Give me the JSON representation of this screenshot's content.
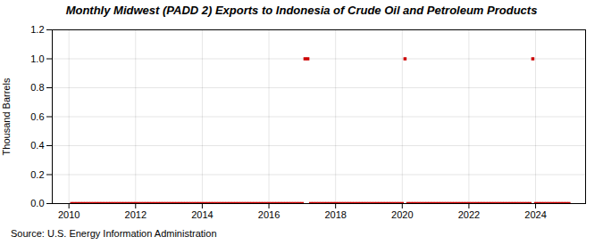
{
  "chart_data": {
    "type": "scatter",
    "title": "Monthly Midwest (PADD 2) Exports to Indonesia of Crude Oil and Petroleum Products",
    "ylabel": "Thousand Barrels",
    "source": "Source: U.S. Energy Information Administration",
    "color": "#cc0000",
    "marker": "square",
    "grid": true,
    "xlim": [
      2009.5,
      2025.5
    ],
    "xticks": [
      2010,
      2012,
      2014,
      2016,
      2018,
      2020,
      2022,
      2024
    ],
    "ylim": [
      0.0,
      1.2
    ],
    "yticks": [
      {
        "value": 0.0,
        "label": "0.0"
      },
      0.2,
      0.4,
      0.6,
      0.8,
      {
        "value": 1.0,
        "label": "1.0"
      },
      1.2
    ],
    "x": [
      2010.0833,
      2010.1667,
      2010.25,
      2010.3333,
      2010.4167,
      2010.5,
      2010.5833,
      2010.6667,
      2010.75,
      2010.8333,
      2010.9167,
      2011.0,
      2011.0833,
      2011.1667,
      2011.25,
      2011.3333,
      2011.4167,
      2011.5,
      2011.5833,
      2011.6667,
      2011.75,
      2011.8333,
      2011.9167,
      2012.0,
      2012.0833,
      2012.1667,
      2012.25,
      2012.3333,
      2012.4167,
      2012.5,
      2012.5833,
      2012.6667,
      2012.75,
      2012.8333,
      2012.9167,
      2013.0,
      2013.0833,
      2013.1667,
      2013.25,
      2013.3333,
      2013.4167,
      2013.5,
      2013.5833,
      2013.6667,
      2013.75,
      2013.8333,
      2013.9167,
      2014.0,
      2014.0833,
      2014.1667,
      2014.25,
      2014.3333,
      2014.4167,
      2014.5,
      2014.5833,
      2014.6667,
      2014.75,
      2014.8333,
      2014.9167,
      2015.0,
      2015.0833,
      2015.1667,
      2015.25,
      2015.3333,
      2015.4167,
      2015.5,
      2015.5833,
      2015.6667,
      2015.75,
      2015.8333,
      2015.9167,
      2016.0,
      2016.0833,
      2016.1667,
      2016.25,
      2016.3333,
      2016.4167,
      2016.5,
      2016.5833,
      2016.6667,
      2016.75,
      2016.8333,
      2016.9167,
      2017.0,
      2017.0833,
      2017.1667,
      2017.25,
      2017.3333,
      2017.4167,
      2017.5,
      2017.5833,
      2017.6667,
      2017.75,
      2017.8333,
      2017.9167,
      2018.0,
      2018.0833,
      2018.1667,
      2018.25,
      2018.3333,
      2018.4167,
      2018.5,
      2018.5833,
      2018.6667,
      2018.75,
      2018.8333,
      2018.9167,
      2019.0,
      2019.0833,
      2019.1667,
      2019.25,
      2019.3333,
      2019.4167,
      2019.5,
      2019.5833,
      2019.6667,
      2019.75,
      2019.8333,
      2019.9167,
      2020.0,
      2020.0833,
      2020.1667,
      2020.25,
      2020.3333,
      2020.4167,
      2020.5,
      2020.5833,
      2020.6667,
      2020.75,
      2020.8333,
      2020.9167,
      2021.0,
      2021.0833,
      2021.1667,
      2021.25,
      2021.3333,
      2021.4167,
      2021.5,
      2021.5833,
      2021.6667,
      2021.75,
      2021.8333,
      2021.9167,
      2022.0,
      2022.0833,
      2022.1667,
      2022.25,
      2022.3333,
      2022.4167,
      2022.5,
      2022.5833,
      2022.6667,
      2022.75,
      2022.8333,
      2022.9167,
      2023.0,
      2023.0833,
      2023.1667,
      2023.25,
      2023.3333,
      2023.4167,
      2023.5,
      2023.5833,
      2023.6667,
      2023.75,
      2023.8333,
      2023.9167,
      2024.0,
      2024.0833,
      2024.1667,
      2024.25,
      2024.3333,
      2024.4167,
      2024.5,
      2024.5833,
      2024.6667,
      2024.75,
      2024.8333,
      2024.9167,
      2025.0
    ],
    "values": [
      0,
      0,
      0,
      0,
      0,
      0,
      0,
      0,
      0,
      0,
      0,
      0,
      0,
      0,
      0,
      0,
      0,
      0,
      0,
      0,
      0,
      0,
      0,
      0,
      0,
      0,
      0,
      0,
      0,
      0,
      0,
      0,
      0,
      0,
      0,
      0,
      0,
      0,
      0,
      0,
      0,
      0,
      0,
      0,
      0,
      0,
      0,
      0,
      0,
      0,
      0,
      0,
      0,
      0,
      0,
      0,
      0,
      0,
      0,
      0,
      0,
      0,
      0,
      0,
      0,
      0,
      0,
      0,
      0,
      0,
      0,
      0,
      0,
      0,
      0,
      0,
      0,
      0,
      0,
      0,
      0,
      0,
      0,
      0,
      1,
      1,
      0,
      0,
      0,
      0,
      0,
      0,
      0,
      0,
      0,
      0,
      0,
      0,
      0,
      0,
      0,
      0,
      0,
      0,
      0,
      0,
      0,
      0,
      0,
      0,
      0,
      0,
      0,
      0,
      0,
      0,
      0,
      0,
      0,
      0,
      1,
      0,
      0,
      0,
      0,
      0,
      0,
      0,
      0,
      0,
      0,
      0,
      0,
      0,
      0,
      0,
      0,
      0,
      0,
      0,
      0,
      0,
      0,
      0,
      0,
      0,
      0,
      0,
      0,
      0,
      0,
      0,
      0,
      0,
      0,
      0,
      0,
      0,
      0,
      0,
      0,
      0,
      0,
      0,
      0,
      0,
      1,
      0,
      0,
      0,
      0,
      0,
      0,
      0,
      0,
      0,
      0,
      0,
      0,
      0
    ]
  }
}
